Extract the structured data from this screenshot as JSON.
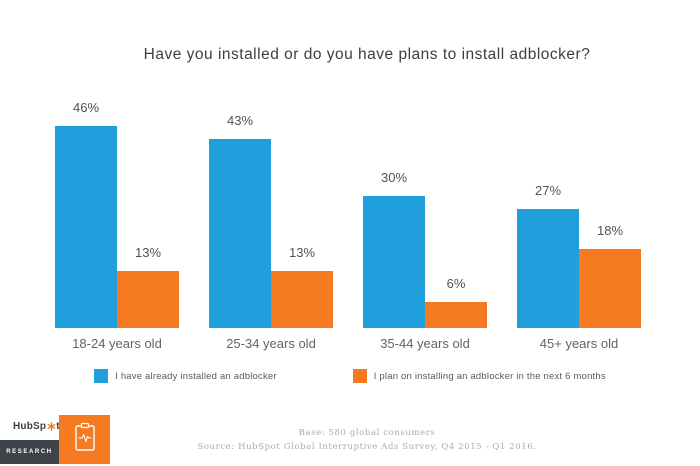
{
  "title": "Have you installed or do you have plans to install adblocker?",
  "chart_data": {
    "type": "bar",
    "title": "Have you installed or do you have plans to install adblocker?",
    "categories": [
      "18-24 years old",
      "25-34 years old",
      "35-44 years old",
      "45+ years old"
    ],
    "series": [
      {
        "name": "I have already installed an adblocker",
        "color": "#1F9FDB",
        "values": [
          46,
          43,
          30,
          27
        ]
      },
      {
        "name": "I plan on installing an adblocker in the next 6 months",
        "color": "#F57A21",
        "values": [
          13,
          13,
          6,
          18
        ]
      }
    ],
    "value_suffix": "%",
    "xlabel": "",
    "ylabel": "",
    "ylim": [
      0,
      50
    ],
    "grid": false,
    "axes_visible": false,
    "data_labels": true,
    "legend_position": "bottom"
  },
  "footer": {
    "base_line": "Base: 580 global consumers",
    "source_line": "Source: HubSpot Global Interruptive Ads Survey, Q4 2015 - Q1 2016."
  },
  "branding": {
    "wordmark_full": "HubSpot",
    "wordmark_prefix": "HubSp",
    "wordmark_suffix": "t",
    "research_label": "RESEARCH",
    "tile_color": "#F57A21",
    "band_color": "#3E4349"
  },
  "colors": {
    "blue": "#1F9FDB",
    "orange": "#F57A21",
    "background": "#FFFFFF",
    "title_text": "#3A3F45",
    "footer_text": "#A7ACB1"
  }
}
